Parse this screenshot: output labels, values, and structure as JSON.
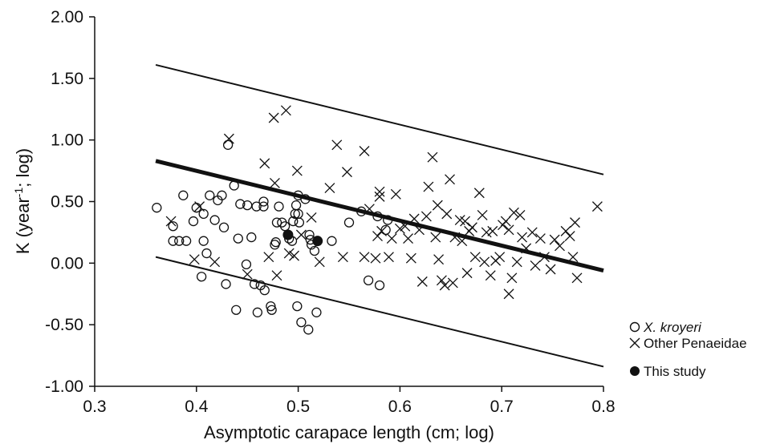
{
  "chart_data": {
    "type": "scatter",
    "title": "",
    "xlabel": "Asymptotic carapace length (cm; log)",
    "ylabel_main": "K (year",
    "ylabel_sup": "-1",
    "ylabel_tail": "; log)",
    "xlim": [
      0.3,
      0.8
    ],
    "ylim": [
      -1.0,
      2.0
    ],
    "x_ticks": [
      "0.3",
      "0.4",
      "0.5",
      "0.6",
      "0.7",
      "0.8"
    ],
    "y_ticks": [
      "2.00",
      "1.50",
      "1.00",
      "0.50",
      "0.00",
      "-0.50",
      "-1.00"
    ],
    "grid": false,
    "legend_position": "right",
    "series": [
      {
        "name": "X. kroyeri",
        "marker": "open-circle",
        "points": [
          [
            0.361,
            0.45
          ],
          [
            0.377,
            0.3
          ],
          [
            0.377,
            0.18
          ],
          [
            0.383,
            0.18
          ],
          [
            0.387,
            0.55
          ],
          [
            0.39,
            0.18
          ],
          [
            0.397,
            0.34
          ],
          [
            0.4,
            0.45
          ],
          [
            0.405,
            -0.11
          ],
          [
            0.407,
            0.4
          ],
          [
            0.407,
            0.18
          ],
          [
            0.41,
            0.08
          ],
          [
            0.413,
            0.55
          ],
          [
            0.418,
            0.35
          ],
          [
            0.421,
            0.51
          ],
          [
            0.425,
            0.55
          ],
          [
            0.427,
            0.29
          ],
          [
            0.429,
            -0.17
          ],
          [
            0.431,
            0.96
          ],
          [
            0.437,
            0.63
          ],
          [
            0.439,
            -0.38
          ],
          [
            0.441,
            0.2
          ],
          [
            0.443,
            0.48
          ],
          [
            0.449,
            -0.01
          ],
          [
            0.45,
            0.47
          ],
          [
            0.454,
            0.21
          ],
          [
            0.457,
            -0.17
          ],
          [
            0.459,
            0.46
          ],
          [
            0.46,
            -0.4
          ],
          [
            0.463,
            -0.18
          ],
          [
            0.466,
            0.46
          ],
          [
            0.466,
            0.5
          ],
          [
            0.467,
            -0.22
          ],
          [
            0.473,
            -0.35
          ],
          [
            0.474,
            -0.38
          ],
          [
            0.477,
            0.15
          ],
          [
            0.478,
            0.17
          ],
          [
            0.479,
            0.33
          ],
          [
            0.481,
            0.46
          ],
          [
            0.484,
            0.33
          ],
          [
            0.487,
            0.3
          ],
          [
            0.491,
            0.2
          ],
          [
            0.494,
            0.18
          ],
          [
            0.495,
            0.34
          ],
          [
            0.497,
            0.4
          ],
          [
            0.498,
            0.47
          ],
          [
            0.499,
            -0.35
          ],
          [
            0.5,
            0.55
          ],
          [
            0.5,
            0.4
          ],
          [
            0.501,
            0.33
          ],
          [
            0.503,
            -0.48
          ],
          [
            0.507,
            0.52
          ],
          [
            0.51,
            -0.54
          ],
          [
            0.511,
            0.23
          ],
          [
            0.512,
            0.19
          ],
          [
            0.513,
            0.15
          ],
          [
            0.516,
            0.1
          ],
          [
            0.518,
            -0.4
          ],
          [
            0.533,
            0.18
          ],
          [
            0.55,
            0.33
          ],
          [
            0.562,
            0.42
          ],
          [
            0.569,
            -0.14
          ],
          [
            0.578,
            0.38
          ],
          [
            0.58,
            -0.18
          ],
          [
            0.586,
            0.27
          ],
          [
            0.588,
            0.35
          ]
        ]
      },
      {
        "name": "Other Penaeidae",
        "marker": "cross",
        "points": [
          [
            0.375,
            0.34
          ],
          [
            0.398,
            0.03
          ],
          [
            0.403,
            0.46
          ],
          [
            0.418,
            0.01
          ],
          [
            0.432,
            1.01
          ],
          [
            0.45,
            -0.09
          ],
          [
            0.467,
            0.81
          ],
          [
            0.471,
            0.05
          ],
          [
            0.476,
            1.18
          ],
          [
            0.477,
            0.65
          ],
          [
            0.479,
            -0.1
          ],
          [
            0.488,
            1.24
          ],
          [
            0.491,
            0.08
          ],
          [
            0.496,
            0.06
          ],
          [
            0.499,
            0.75
          ],
          [
            0.503,
            0.23
          ],
          [
            0.513,
            0.37
          ],
          [
            0.521,
            0.01
          ],
          [
            0.531,
            0.61
          ],
          [
            0.538,
            0.96
          ],
          [
            0.544,
            0.05
          ],
          [
            0.548,
            0.74
          ],
          [
            0.565,
            0.91
          ],
          [
            0.565,
            0.05
          ],
          [
            0.57,
            0.44
          ],
          [
            0.576,
            0.04
          ],
          [
            0.578,
            0.22
          ],
          [
            0.58,
            0.58
          ],
          [
            0.58,
            0.54
          ],
          [
            0.582,
            0.26
          ],
          [
            0.589,
            0.05
          ],
          [
            0.592,
            0.2
          ],
          [
            0.596,
            0.56
          ],
          [
            0.6,
            0.28
          ],
          [
            0.605,
            0.3
          ],
          [
            0.608,
            0.2
          ],
          [
            0.611,
            0.04
          ],
          [
            0.614,
            0.36
          ],
          [
            0.619,
            0.27
          ],
          [
            0.622,
            -0.15
          ],
          [
            0.626,
            0.38
          ],
          [
            0.628,
            0.62
          ],
          [
            0.632,
            0.86
          ],
          [
            0.635,
            0.21
          ],
          [
            0.637,
            0.47
          ],
          [
            0.638,
            0.03
          ],
          [
            0.644,
            -0.18
          ],
          [
            0.646,
            0.4
          ],
          [
            0.649,
            0.68
          ],
          [
            0.652,
            -0.16
          ],
          [
            0.654,
            0.21
          ],
          [
            0.659,
            0.35
          ],
          [
            0.661,
            0.18
          ],
          [
            0.664,
            0.34
          ],
          [
            0.668,
            0.26
          ],
          [
            0.671,
            0.29
          ],
          [
            0.674,
            0.05
          ],
          [
            0.678,
            0.57
          ],
          [
            0.681,
            0.39
          ],
          [
            0.685,
            0.25
          ],
          [
            0.689,
            -0.1
          ],
          [
            0.691,
            0.26
          ],
          [
            0.694,
            0.02
          ],
          [
            0.698,
            0.05
          ],
          [
            0.701,
            0.31
          ],
          [
            0.704,
            0.34
          ],
          [
            0.707,
            0.27
          ],
          [
            0.712,
            0.41
          ],
          [
            0.715,
            0.01
          ],
          [
            0.718,
            0.39
          ],
          [
            0.72,
            0.21
          ],
          [
            0.724,
            0.12
          ],
          [
            0.73,
            0.25
          ],
          [
            0.733,
            -0.02
          ],
          [
            0.738,
            0.2
          ],
          [
            0.742,
            0.05
          ],
          [
            0.748,
            -0.05
          ],
          [
            0.752,
            0.19
          ],
          [
            0.757,
            0.14
          ],
          [
            0.763,
            0.26
          ],
          [
            0.767,
            0.22
          ],
          [
            0.77,
            0.05
          ],
          [
            0.772,
            0.33
          ],
          [
            0.774,
            -0.12
          ],
          [
            0.794,
            0.46
          ],
          [
            0.707,
            -0.25
          ],
          [
            0.71,
            -0.12
          ],
          [
            0.641,
            -0.14
          ],
          [
            0.666,
            -0.08
          ],
          [
            0.683,
            0.01
          ]
        ]
      },
      {
        "name": "This study",
        "marker": "filled-circle",
        "points": [
          [
            0.49,
            0.23
          ],
          [
            0.519,
            0.18
          ]
        ]
      }
    ],
    "lines": [
      {
        "role": "upper bound",
        "x": [
          0.36,
          0.8
        ],
        "y": [
          1.61,
          0.72
        ]
      },
      {
        "role": "regression",
        "x": [
          0.36,
          0.8
        ],
        "y": [
          0.83,
          -0.06
        ]
      },
      {
        "role": "lower bound",
        "x": [
          0.36,
          0.8
        ],
        "y": [
          0.05,
          -0.84
        ]
      }
    ],
    "legend": [
      {
        "marker": "open-circle",
        "label": "X. kroyeri",
        "italic": true
      },
      {
        "marker": "cross",
        "label": "Other Penaeidae",
        "italic": false
      },
      {
        "marker": "filled-circle",
        "label": "This study",
        "italic": false
      }
    ]
  }
}
